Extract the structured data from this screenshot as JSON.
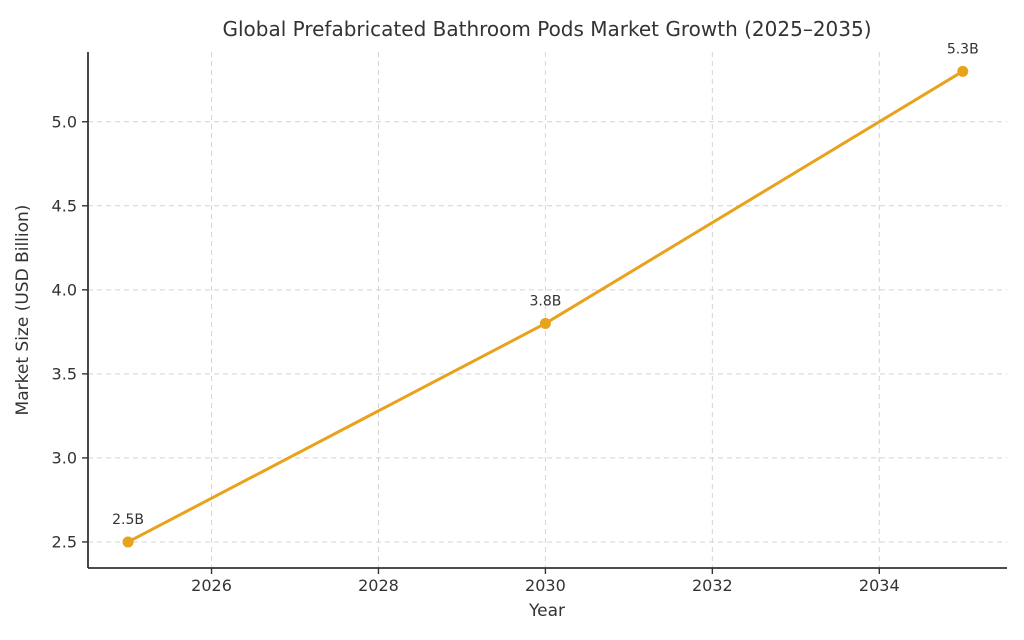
{
  "page": {
    "background": "#ffffff"
  },
  "chart_data": {
    "type": "line",
    "title": "Global Prefabricated Bathroom Pods Market Growth (2025–2035)",
    "xlabel": "Year",
    "ylabel": "Market Size (USD Billion)",
    "x": [
      2025,
      2030,
      2035
    ],
    "series": [
      {
        "name": "Market Size (USD Billion)",
        "values": [
          2.5,
          3.8,
          5.3
        ]
      }
    ],
    "point_labels": [
      "2.5B",
      "3.8B",
      "5.3B"
    ],
    "xticks": [
      2026,
      2028,
      2030,
      2032,
      2034
    ],
    "yticks": [
      2.5,
      3.0,
      3.5,
      4.0,
      4.5,
      5.0
    ],
    "xlim": [
      2024.52,
      2035.53
    ],
    "ylim": [
      2.345,
      5.415
    ],
    "grid": "dashed",
    "legend": "none",
    "line_color": "#E8A21C",
    "marker_color": "#E8A21C",
    "text_color": "#333333",
    "grid_color": "#d4d4d4",
    "spine_color": "#333333"
  }
}
